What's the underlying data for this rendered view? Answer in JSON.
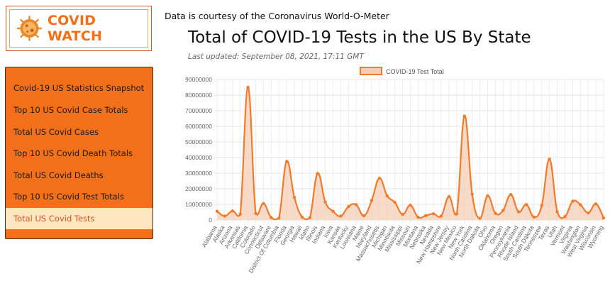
{
  "logo": {
    "text": "COVID WATCH",
    "icon": "virus-icon"
  },
  "courtesy": "Data is courtesy of the Coronavirus World-O-Meter",
  "page_title": "Total of COVID-19 Tests in the US By State",
  "last_updated": "Last updated: September 08, 2021, 17:11 GMT",
  "colors": {
    "accent": "#f3701a",
    "active_bg": "#fde6c2",
    "line": "#f07b2c",
    "fill": "#f5cdb5"
  },
  "sidebar": {
    "items": [
      {
        "label": "Covid-19 US Statistics Snapshot"
      },
      {
        "label": "Top 10 US Covid Case Totals"
      },
      {
        "label": "Total US Covid Cases"
      },
      {
        "label": "Top 10 US Covid Death Totals"
      },
      {
        "label": "Total US Covid Deaths"
      },
      {
        "label": "Top 10 US Covid Test Totals"
      },
      {
        "label": "Total US Covid Tests",
        "active": true
      }
    ]
  },
  "chart_data": {
    "type": "area",
    "title": "",
    "legend": "COVID-19 Test Total",
    "legend_position": "top",
    "grid": true,
    "ylim": [
      0,
      90000000
    ],
    "yticks": [
      0,
      10000000,
      20000000,
      30000000,
      40000000,
      50000000,
      60000000,
      70000000,
      80000000,
      90000000
    ],
    "categories": [
      "Alabama",
      "Alaska",
      "Arizona",
      "Arkansas",
      "California",
      "Colorado",
      "Connecticut",
      "Delaware",
      "District Of Columbia",
      "Florida",
      "Georgia",
      "Hawaii",
      "Idaho",
      "Illinois",
      "Indiana",
      "Iowa",
      "Kansas",
      "Kentucky",
      "Louisiana",
      "Maine",
      "Maryland",
      "Massachusetts",
      "Michigan",
      "Minnesota",
      "Mississippi",
      "Missouri",
      "Montana",
      "Nebraska",
      "Nevada",
      "New Hampshire",
      "New Jersey",
      "New Mexico",
      "New York",
      "North Carolina",
      "North Dakota",
      "Ohio",
      "Oklahoma",
      "Oregon",
      "Pennsylvania",
      "Rhode Island",
      "South Carolina",
      "South Dakota",
      "Tennessee",
      "Texas",
      "Utah",
      "Vermont",
      "Virginia",
      "Washington",
      "West Virginia",
      "Wisconsin",
      "Wyoming"
    ],
    "series": [
      {
        "name": "COVID-19 Test Total",
        "values": [
          5600000,
          2500000,
          5800000,
          3800000,
          85000000,
          4300000,
          10600000,
          1600000,
          1200000,
          37500000,
          14500000,
          1900000,
          1500000,
          29800000,
          11500000,
          5600000,
          2500000,
          8600000,
          9800000,
          2700000,
          12500000,
          26800000,
          15500000,
          11300000,
          3600000,
          9500000,
          1800000,
          2800000,
          4000000,
          2600000,
          15000000,
          4000000,
          66500000,
          16500000,
          1100000,
          15500000,
          4300000,
          6200000,
          16300000,
          5200000,
          9900000,
          1900000,
          9400000,
          39000000,
          5200000,
          2200000,
          12000000,
          9800000,
          4500000,
          10300000,
          1300000
        ]
      }
    ]
  }
}
